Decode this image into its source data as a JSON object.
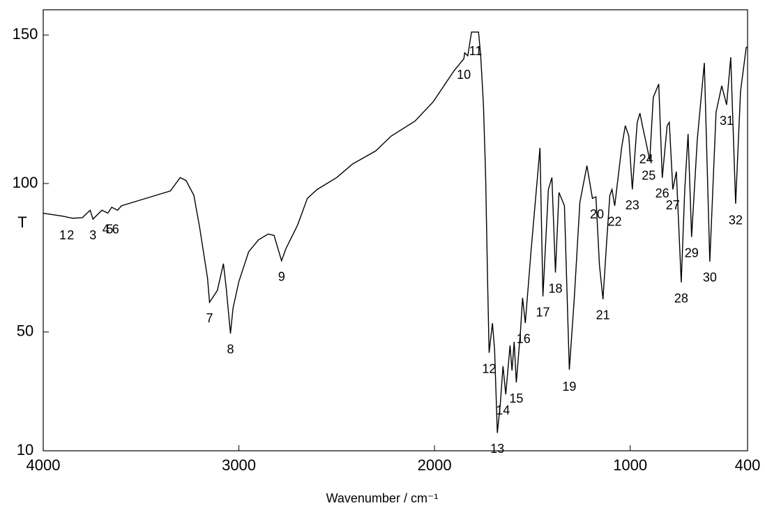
{
  "chart_data": {
    "type": "line",
    "xlabel": "Wavenumber / cm⁻¹",
    "ylabel": "T",
    "xlim": [
      4000,
      400
    ],
    "ylim": [
      10,
      158.5
    ],
    "xticks": [
      4000,
      3000,
      2000,
      1000,
      400
    ],
    "yticks": [
      10,
      50,
      100,
      150
    ],
    "color": "#000000",
    "x": [
      4000,
      3900,
      3850,
      3800,
      3760,
      3746,
      3700,
      3670,
      3650,
      3620,
      3600,
      3500,
      3400,
      3350,
      3300,
      3270,
      3230,
      3200,
      3160,
      3150,
      3110,
      3079,
      3065,
      3043,
      3030,
      3000,
      2950,
      2900,
      2850,
      2820,
      2800,
      2782,
      2760,
      2700,
      2650,
      2600,
      2500,
      2418,
      2300,
      2221,
      2100,
      2007,
      1900,
      1850,
      1846,
      1830,
      1811,
      1775,
      1764,
      1750,
      1739,
      1729,
      1721,
      1704,
      1693,
      1679,
      1664,
      1650,
      1636,
      1614,
      1604,
      1593,
      1582,
      1561,
      1550,
      1536,
      1507,
      1461,
      1446,
      1418,
      1400,
      1382,
      1364,
      1336,
      1311,
      1286,
      1257,
      1221,
      1193,
      1175,
      1157,
      1139,
      1121,
      1104,
      1093,
      1079,
      1043,
      1025,
      1007,
      989,
      964,
      950,
      936,
      918,
      900,
      882,
      854,
      836,
      811,
      800,
      782,
      764,
      739,
      721,
      704,
      686,
      657,
      621,
      593,
      561,
      532,
      507,
      486,
      461,
      436,
      407,
      400
    ],
    "y": [
      90,
      89,
      88.3,
      88.5,
      91,
      88,
      91,
      90,
      92,
      91,
      92.5,
      94.5,
      96.5,
      97.5,
      102,
      101,
      96,
      85,
      68,
      60,
      64,
      73,
      65,
      49.5,
      58,
      67,
      77,
      81,
      83,
      82.5,
      78,
      74,
      78,
      86,
      95,
      98,
      102,
      106.6,
      111,
      116,
      121,
      127.5,
      138,
      142,
      144,
      143,
      151,
      151,
      143,
      126.5,
      103,
      68,
      43,
      53,
      44,
      16,
      25.6,
      38.5,
      29,
      45.5,
      37,
      46.7,
      33,
      50,
      61.5,
      53,
      77,
      112,
      62,
      98,
      102,
      70,
      97,
      92.5,
      37.3,
      61,
      93.7,
      106,
      95,
      95.5,
      72.5,
      61,
      79.6,
      96,
      98,
      92.5,
      112.4,
      119.5,
      116,
      98,
      120.6,
      123.7,
      119,
      113.6,
      107.7,
      129,
      133.5,
      101.9,
      119.5,
      120.6,
      98,
      104,
      66.7,
      98,
      116.7,
      82,
      114.8,
      140.6,
      73.7,
      124,
      132.9,
      126.5,
      142.5,
      93.2,
      131,
      145.8,
      146
    ],
    "peaks": [
      {
        "label": "1",
        "x": 3900,
        "y": 88
      },
      {
        "label": "2",
        "x": 3860,
        "y": 88
      },
      {
        "label": "3",
        "x": 3746,
        "y": 88
      },
      {
        "label": "4",
        "x": 3680,
        "y": 90
      },
      {
        "label": "5",
        "x": 3660,
        "y": 90
      },
      {
        "label": "6",
        "x": 3630,
        "y": 90
      },
      {
        "label": "7",
        "x": 3150,
        "y": 60
      },
      {
        "label": "8",
        "x": 3043,
        "y": 49.5
      },
      {
        "label": "9",
        "x": 2782,
        "y": 74
      },
      {
        "label": "10",
        "x": 1850,
        "y": 142
      },
      {
        "label": "11",
        "x": 1790,
        "y": 150
      },
      {
        "label": "12",
        "x": 1721,
        "y": 43
      },
      {
        "label": "13",
        "x": 1679,
        "y": 16
      },
      {
        "label": "14",
        "x": 1650,
        "y": 29
      },
      {
        "label": "15",
        "x": 1582,
        "y": 33
      },
      {
        "label": "16",
        "x": 1545,
        "y": 53
      },
      {
        "label": "17",
        "x": 1446,
        "y": 62
      },
      {
        "label": "18",
        "x": 1382,
        "y": 70
      },
      {
        "label": "19",
        "x": 1311,
        "y": 37
      },
      {
        "label": "20",
        "x": 1170,
        "y": 95
      },
      {
        "label": "21",
        "x": 1139,
        "y": 61
      },
      {
        "label": "22",
        "x": 1079,
        "y": 92.5
      },
      {
        "label": "23",
        "x": 989,
        "y": 98
      },
      {
        "label": "24",
        "x": 918,
        "y": 113.6
      },
      {
        "label": "25",
        "x": 905,
        "y": 108
      },
      {
        "label": "26",
        "x": 836,
        "y": 102
      },
      {
        "label": "27",
        "x": 782,
        "y": 98
      },
      {
        "label": "28",
        "x": 739,
        "y": 66.7
      },
      {
        "label": "29",
        "x": 686,
        "y": 82
      },
      {
        "label": "30",
        "x": 593,
        "y": 73.7
      },
      {
        "label": "31",
        "x": 507,
        "y": 126.5
      },
      {
        "label": "32",
        "x": 461,
        "y": 93
      }
    ]
  }
}
